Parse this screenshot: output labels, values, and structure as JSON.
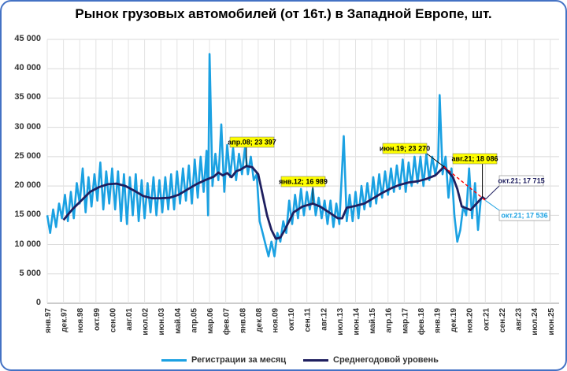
{
  "chart_data": {
    "type": "line",
    "title": "Рынок грузовых автомобилей (от 16т.) в Западной Европе, шт.",
    "ylim": [
      0,
      45000
    ],
    "yticks": [
      {
        "value": 0,
        "label": "0"
      },
      {
        "value": 5000,
        "label": "5 000"
      },
      {
        "value": 10000,
        "label": "10 000"
      },
      {
        "value": 15000,
        "label": "15 000"
      },
      {
        "value": 20000,
        "label": "20 000"
      },
      {
        "value": 25000,
        "label": "25 000"
      },
      {
        "value": 30000,
        "label": "30 000"
      },
      {
        "value": 35000,
        "label": "35 000"
      },
      {
        "value": 40000,
        "label": "40 000"
      },
      {
        "value": 45000,
        "label": "45 000"
      }
    ],
    "x_range": [
      "1997-01",
      "2025-12"
    ],
    "grid": true,
    "legend_position": "bottom",
    "xticks": [
      {
        "date": "1997-01",
        "label": "янв.97"
      },
      {
        "date": "1997-12",
        "label": "дек.97"
      },
      {
        "date": "1998-11",
        "label": "ноя.98"
      },
      {
        "date": "1999-10",
        "label": "окт.99"
      },
      {
        "date": "2000-09",
        "label": "сен.00"
      },
      {
        "date": "2001-08",
        "label": "авг.01"
      },
      {
        "date": "2002-07",
        "label": "июл.02"
      },
      {
        "date": "2003-06",
        "label": "июн.03"
      },
      {
        "date": "2004-05",
        "label": "май.04"
      },
      {
        "date": "2005-04",
        "label": "апр.05"
      },
      {
        "date": "2006-03",
        "label": "мар.06"
      },
      {
        "date": "2007-02",
        "label": "фев.07"
      },
      {
        "date": "2008-01",
        "label": "янв.08"
      },
      {
        "date": "2008-12",
        "label": "дек.08"
      },
      {
        "date": "2009-11",
        "label": "ноя.09"
      },
      {
        "date": "2010-10",
        "label": "окт.10"
      },
      {
        "date": "2011-09",
        "label": "сен.11"
      },
      {
        "date": "2012-08",
        "label": "авг.12"
      },
      {
        "date": "2013-07",
        "label": "июл.13"
      },
      {
        "date": "2014-06",
        "label": "июн.14"
      },
      {
        "date": "2015-05",
        "label": "май.15"
      },
      {
        "date": "2016-04",
        "label": "апр.16"
      },
      {
        "date": "2017-03",
        "label": "мар.17"
      },
      {
        "date": "2018-02",
        "label": "фев.18"
      },
      {
        "date": "2019-01",
        "label": "янв.19"
      },
      {
        "date": "2019-12",
        "label": "дек.19"
      },
      {
        "date": "2020-11",
        "label": "ноя.20"
      },
      {
        "date": "2021-10",
        "label": "окт.21"
      },
      {
        "date": "2022-09",
        "label": "сен.22"
      },
      {
        "date": "2023-08",
        "label": "авг.23"
      },
      {
        "date": "2024-07",
        "label": "июл.24"
      },
      {
        "date": "2025-06",
        "label": "июн.25"
      }
    ],
    "series": [
      {
        "name": "Регистрации за месяц",
        "color": "#1ba1e2",
        "points": [
          [
            "1997-01",
            15000
          ],
          [
            "1997-03",
            12000
          ],
          [
            "1997-05",
            16000
          ],
          [
            "1997-07",
            13000
          ],
          [
            "1997-09",
            17000
          ],
          [
            "1997-11",
            14500
          ],
          [
            "1998-01",
            18500
          ],
          [
            "1998-03",
            14000
          ],
          [
            "1998-05",
            19000
          ],
          [
            "1998-07",
            14500
          ],
          [
            "1998-09",
            20500
          ],
          [
            "1998-11",
            17000
          ],
          [
            "1999-01",
            23000
          ],
          [
            "1999-03",
            15500
          ],
          [
            "1999-05",
            21500
          ],
          [
            "1999-07",
            16500
          ],
          [
            "1999-09",
            22000
          ],
          [
            "1999-11",
            17500
          ],
          [
            "2000-01",
            24000
          ],
          [
            "2000-03",
            16000
          ],
          [
            "2000-05",
            22500
          ],
          [
            "2000-07",
            17000
          ],
          [
            "2000-09",
            23000
          ],
          [
            "2000-11",
            16000
          ],
          [
            "2001-01",
            22500
          ],
          [
            "2001-03",
            14000
          ],
          [
            "2001-05",
            22000
          ],
          [
            "2001-07",
            13500
          ],
          [
            "2001-09",
            21500
          ],
          [
            "2001-11",
            15000
          ],
          [
            "2002-01",
            22000
          ],
          [
            "2002-03",
            14000
          ],
          [
            "2002-05",
            21000
          ],
          [
            "2002-07",
            14500
          ],
          [
            "2002-09",
            20500
          ],
          [
            "2002-11",
            15500
          ],
          [
            "2003-01",
            21500
          ],
          [
            "2003-03",
            15000
          ],
          [
            "2003-05",
            21000
          ],
          [
            "2003-07",
            15500
          ],
          [
            "2003-09",
            21500
          ],
          [
            "2003-11",
            16000
          ],
          [
            "2004-01",
            22000
          ],
          [
            "2004-03",
            16000
          ],
          [
            "2004-05",
            22500
          ],
          [
            "2004-07",
            17000
          ],
          [
            "2004-09",
            23000
          ],
          [
            "2004-11",
            17500
          ],
          [
            "2005-01",
            23500
          ],
          [
            "2005-03",
            17000
          ],
          [
            "2005-05",
            24500
          ],
          [
            "2005-07",
            18000
          ],
          [
            "2005-09",
            25000
          ],
          [
            "2005-11",
            19000
          ],
          [
            "2006-01",
            26000
          ],
          [
            "2006-02",
            15000
          ],
          [
            "2006-03",
            42500
          ],
          [
            "2006-05",
            20000
          ],
          [
            "2006-07",
            25500
          ],
          [
            "2006-09",
            21000
          ],
          [
            "2006-11",
            30500
          ],
          [
            "2007-01",
            19000
          ],
          [
            "2007-03",
            27000
          ],
          [
            "2007-05",
            21500
          ],
          [
            "2007-07",
            26500
          ],
          [
            "2007-09",
            21000
          ],
          [
            "2007-11",
            25500
          ],
          [
            "2008-01",
            22000
          ],
          [
            "2008-03",
            26500
          ],
          [
            "2008-05",
            22000
          ],
          [
            "2008-07",
            25000
          ],
          [
            "2008-09",
            21000
          ],
          [
            "2008-11",
            22000
          ],
          [
            "2009-01",
            14000
          ],
          [
            "2009-03",
            12000
          ],
          [
            "2009-05",
            10000
          ],
          [
            "2009-07",
            8000
          ],
          [
            "2009-09",
            10500
          ],
          [
            "2009-11",
            8000
          ],
          [
            "2010-01",
            12000
          ],
          [
            "2010-03",
            10500
          ],
          [
            "2010-05",
            14000
          ],
          [
            "2010-07",
            12000
          ],
          [
            "2010-09",
            17500
          ],
          [
            "2010-11",
            13500
          ],
          [
            "2011-01",
            18500
          ],
          [
            "2011-03",
            14500
          ],
          [
            "2011-05",
            19500
          ],
          [
            "2011-07",
            15000
          ],
          [
            "2011-09",
            19000
          ],
          [
            "2011-11",
            16000
          ],
          [
            "2012-01",
            19500
          ],
          [
            "2012-03",
            15000
          ],
          [
            "2012-05",
            18000
          ],
          [
            "2012-07",
            14500
          ],
          [
            "2012-09",
            17500
          ],
          [
            "2012-11",
            13500
          ],
          [
            "2013-01",
            17500
          ],
          [
            "2013-03",
            13000
          ],
          [
            "2013-05",
            17000
          ],
          [
            "2013-07",
            13500
          ],
          [
            "2013-10",
            28500
          ],
          [
            "2013-12",
            14000
          ],
          [
            "2014-02",
            18500
          ],
          [
            "2014-04",
            14000
          ],
          [
            "2014-06",
            19000
          ],
          [
            "2014-08",
            14500
          ],
          [
            "2014-10",
            20000
          ],
          [
            "2014-12",
            16000
          ],
          [
            "2015-02",
            20500
          ],
          [
            "2015-04",
            16500
          ],
          [
            "2015-06",
            21500
          ],
          [
            "2015-08",
            17000
          ],
          [
            "2015-10",
            22000
          ],
          [
            "2015-12",
            18000
          ],
          [
            "2016-02",
            22500
          ],
          [
            "2016-04",
            18500
          ],
          [
            "2016-06",
            23000
          ],
          [
            "2016-08",
            19000
          ],
          [
            "2016-10",
            23500
          ],
          [
            "2016-12",
            19500
          ],
          [
            "2017-02",
            24500
          ],
          [
            "2017-04",
            19000
          ],
          [
            "2017-06",
            24000
          ],
          [
            "2017-08",
            20000
          ],
          [
            "2017-10",
            25000
          ],
          [
            "2017-12",
            20500
          ],
          [
            "2018-02",
            25000
          ],
          [
            "2018-04",
            20000
          ],
          [
            "2018-06",
            25500
          ],
          [
            "2018-08",
            21000
          ],
          [
            "2018-10",
            25000
          ],
          [
            "2018-12",
            22000
          ],
          [
            "2019-02",
            24500
          ],
          [
            "2019-03",
            35500
          ],
          [
            "2019-05",
            22000
          ],
          [
            "2019-07",
            25000
          ],
          [
            "2019-09",
            18000
          ],
          [
            "2019-11",
            23000
          ],
          [
            "2020-01",
            15000
          ],
          [
            "2020-03",
            10500
          ],
          [
            "2020-05",
            12500
          ],
          [
            "2020-07",
            16500
          ],
          [
            "2020-09",
            15000
          ],
          [
            "2020-11",
            23000
          ],
          [
            "2021-01",
            14500
          ],
          [
            "2021-03",
            20500
          ],
          [
            "2021-05",
            12500
          ],
          [
            "2021-07",
            18000
          ]
        ]
      },
      {
        "name": "Среднегодовой уровень",
        "color": "#1f1f5f",
        "points": [
          [
            "1997-12",
            14200
          ],
          [
            "1998-06",
            16000
          ],
          [
            "1998-12",
            17500
          ],
          [
            "1999-06",
            19000
          ],
          [
            "1999-12",
            19800
          ],
          [
            "2000-06",
            20300
          ],
          [
            "2000-12",
            20400
          ],
          [
            "2001-06",
            20000
          ],
          [
            "2001-12",
            19200
          ],
          [
            "2002-06",
            18300
          ],
          [
            "2002-12",
            17900
          ],
          [
            "2003-06",
            17900
          ],
          [
            "2003-12",
            18000
          ],
          [
            "2004-06",
            18500
          ],
          [
            "2004-12",
            19400
          ],
          [
            "2005-06",
            20300
          ],
          [
            "2005-12",
            21000
          ],
          [
            "2006-06",
            21600
          ],
          [
            "2006-09",
            22300
          ],
          [
            "2006-12",
            21800
          ],
          [
            "2007-03",
            22200
          ],
          [
            "2007-06",
            21500
          ],
          [
            "2007-09",
            22500
          ],
          [
            "2007-12",
            22800
          ],
          [
            "2008-04",
            23397
          ],
          [
            "2008-08",
            23200
          ],
          [
            "2008-12",
            22000
          ],
          [
            "2009-03",
            18500
          ],
          [
            "2009-06",
            15000
          ],
          [
            "2009-09",
            12500
          ],
          [
            "2009-12",
            11000
          ],
          [
            "2010-03",
            11200
          ],
          [
            "2010-06",
            12500
          ],
          [
            "2010-09",
            14000
          ],
          [
            "2010-12",
            15500
          ],
          [
            "2011-06",
            16500
          ],
          [
            "2012-01",
            16989
          ],
          [
            "2012-06",
            16500
          ],
          [
            "2012-12",
            15500
          ],
          [
            "2013-06",
            14500
          ],
          [
            "2013-09",
            14500
          ],
          [
            "2013-12",
            16300
          ],
          [
            "2014-06",
            16600
          ],
          [
            "2014-12",
            17000
          ],
          [
            "2015-06",
            17900
          ],
          [
            "2015-12",
            18800
          ],
          [
            "2016-06",
            19600
          ],
          [
            "2016-12",
            20200
          ],
          [
            "2017-06",
            20600
          ],
          [
            "2017-12",
            20800
          ],
          [
            "2018-06",
            21200
          ],
          [
            "2018-12",
            21800
          ],
          [
            "2019-06",
            23270
          ],
          [
            "2019-12",
            21500
          ],
          [
            "2020-03",
            19500
          ],
          [
            "2020-06",
            16500
          ],
          [
            "2020-12",
            15900
          ],
          [
            "2021-04",
            17000
          ],
          [
            "2021-08",
            18086
          ],
          [
            "2021-10",
            17715
          ]
        ]
      }
    ],
    "trend_line": {
      "from": [
        "2019-06",
        23270
      ],
      "to": [
        "2021-10",
        17536
      ],
      "color": "#ff0000"
    },
    "annotations": [
      {
        "text": "апр.08;  23 397",
        "date": "2008-04",
        "value": 23397,
        "style": "yellow"
      },
      {
        "text": "янв.12;  16 989",
        "date": "2012-01",
        "value": 16989,
        "style": "yellow"
      },
      {
        "text": "июн.19;  23 270",
        "date": "2019-06",
        "value": 23270,
        "style": "yellow"
      },
      {
        "text": "авг.21;  18 086",
        "date": "2021-08",
        "value": 18086,
        "style": "yellow"
      },
      {
        "text": "окт.21;  17 715",
        "date": "2021-10",
        "value": 17715,
        "style": "navy"
      },
      {
        "text": "окт.21; 17 536",
        "date": "2021-10",
        "value": 17536,
        "style": "cyan"
      }
    ]
  }
}
